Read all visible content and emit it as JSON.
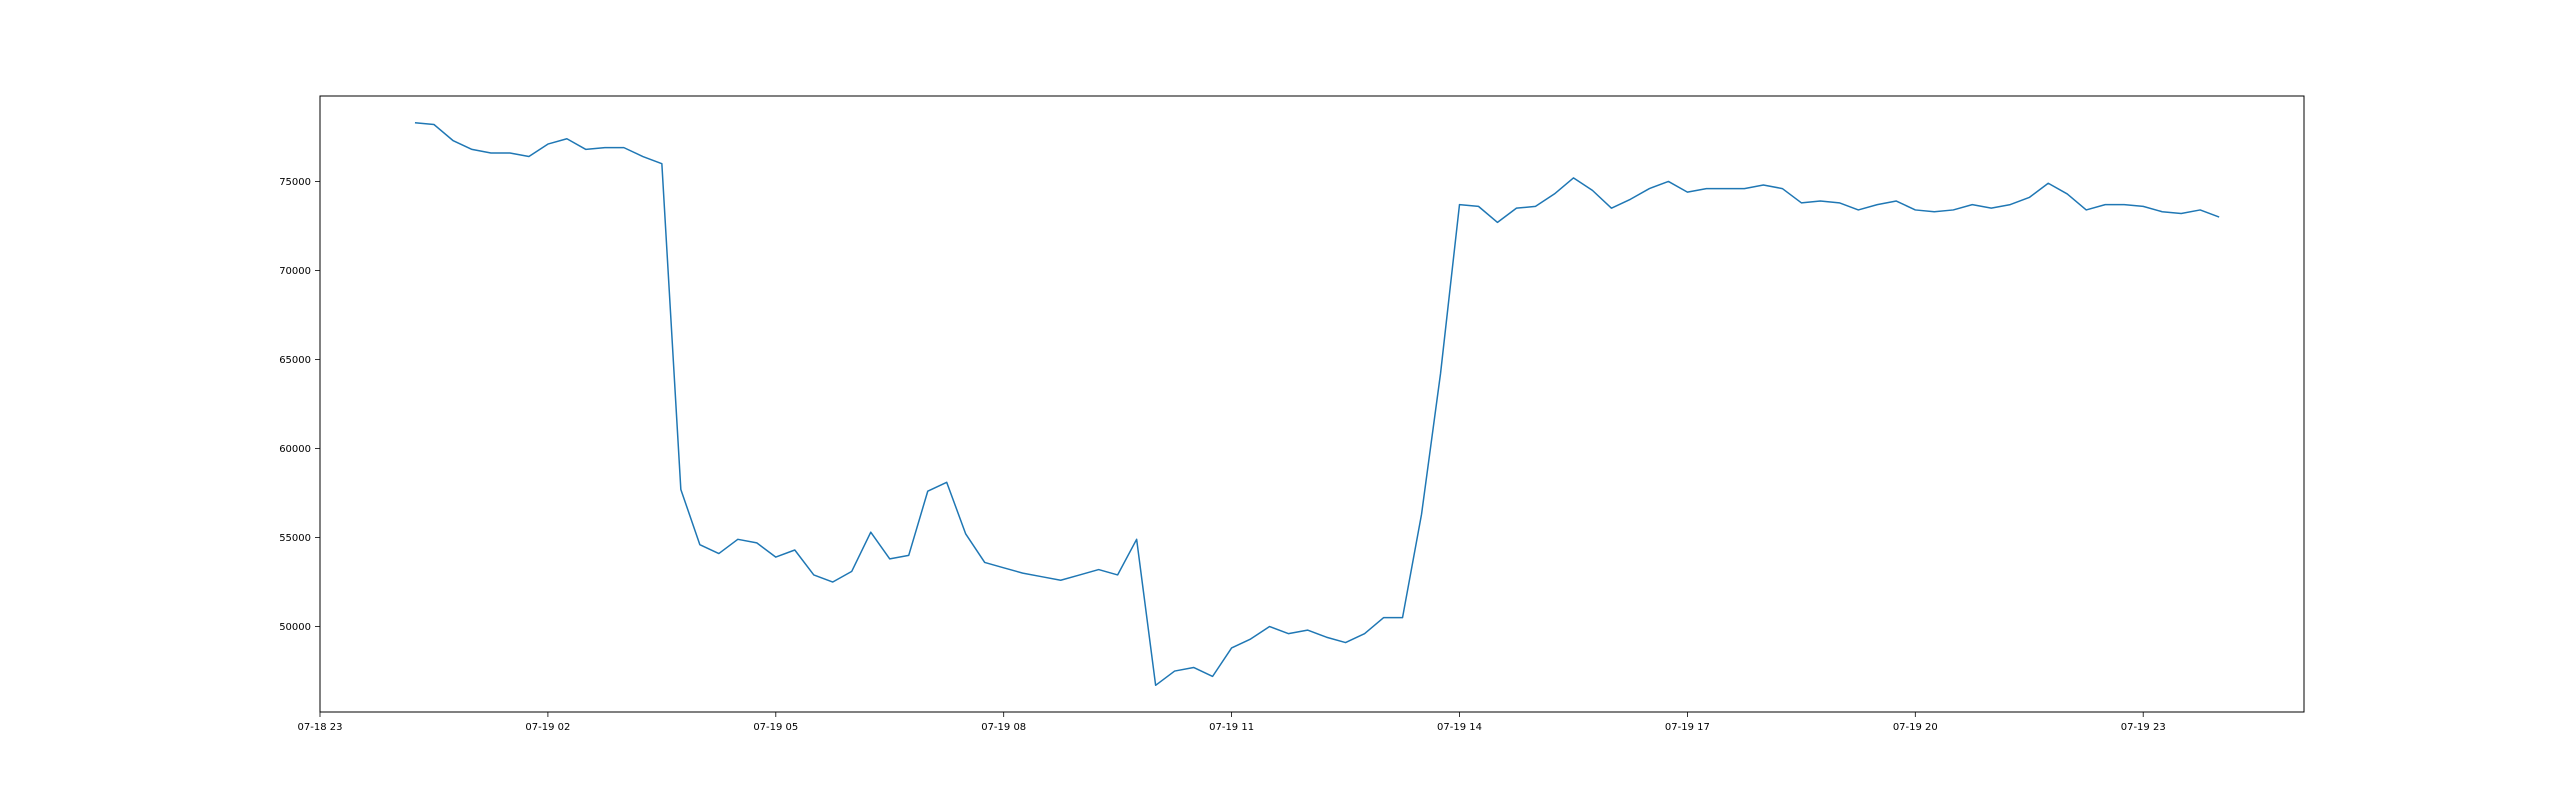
{
  "chart_data": {
    "type": "line",
    "title": "",
    "xlabel": "",
    "ylabel": "",
    "grid": false,
    "legend": "none",
    "color": "#1f77b4",
    "xlim": [
      "07-18 23:00",
      "07-20 01:07"
    ],
    "ylim": [
      45200,
      79800
    ],
    "xticks": [
      "07-18 23",
      "07-19 02",
      "07-19 05",
      "07-19 08",
      "07-19 11",
      "07-19 14",
      "07-19 17",
      "07-19 20",
      "07-19 23"
    ],
    "yticks": [
      50000,
      55000,
      60000,
      65000,
      70000,
      75000
    ],
    "interval_minutes": 15,
    "x_start": "07-19 00:15",
    "x_end": "07-19 24:00",
    "series": [
      {
        "values": [
          78300,
          78200,
          77300,
          76800,
          76600,
          76600,
          76400,
          77100,
          77400,
          76800,
          76900,
          76900,
          76400,
          76000,
          57700,
          54600,
          54100,
          54900,
          54700,
          53900,
          54300,
          52900,
          52500,
          53100,
          55300,
          53800,
          54000,
          57600,
          58100,
          55200,
          53600,
          53300,
          53000,
          52800,
          52600,
          52900,
          53200,
          52900,
          54900,
          46700,
          47500,
          47700,
          47200,
          48800,
          49300,
          50000,
          49600,
          49800,
          49400,
          49100,
          49600,
          50500,
          50500,
          56300,
          64200,
          73700,
          73600,
          72700,
          73500,
          73600,
          74300,
          75200,
          74500,
          73500,
          74000,
          74600,
          75000,
          74400,
          74600,
          74600,
          74600,
          74800,
          74600,
          73800,
          73900,
          73800,
          73400,
          73700,
          73900,
          73400,
          73300,
          73400,
          73700,
          73500,
          73700,
          74100,
          74900,
          74300,
          73400,
          73700,
          73700,
          73600,
          73300,
          73200,
          73400,
          73000
        ]
      }
    ]
  }
}
